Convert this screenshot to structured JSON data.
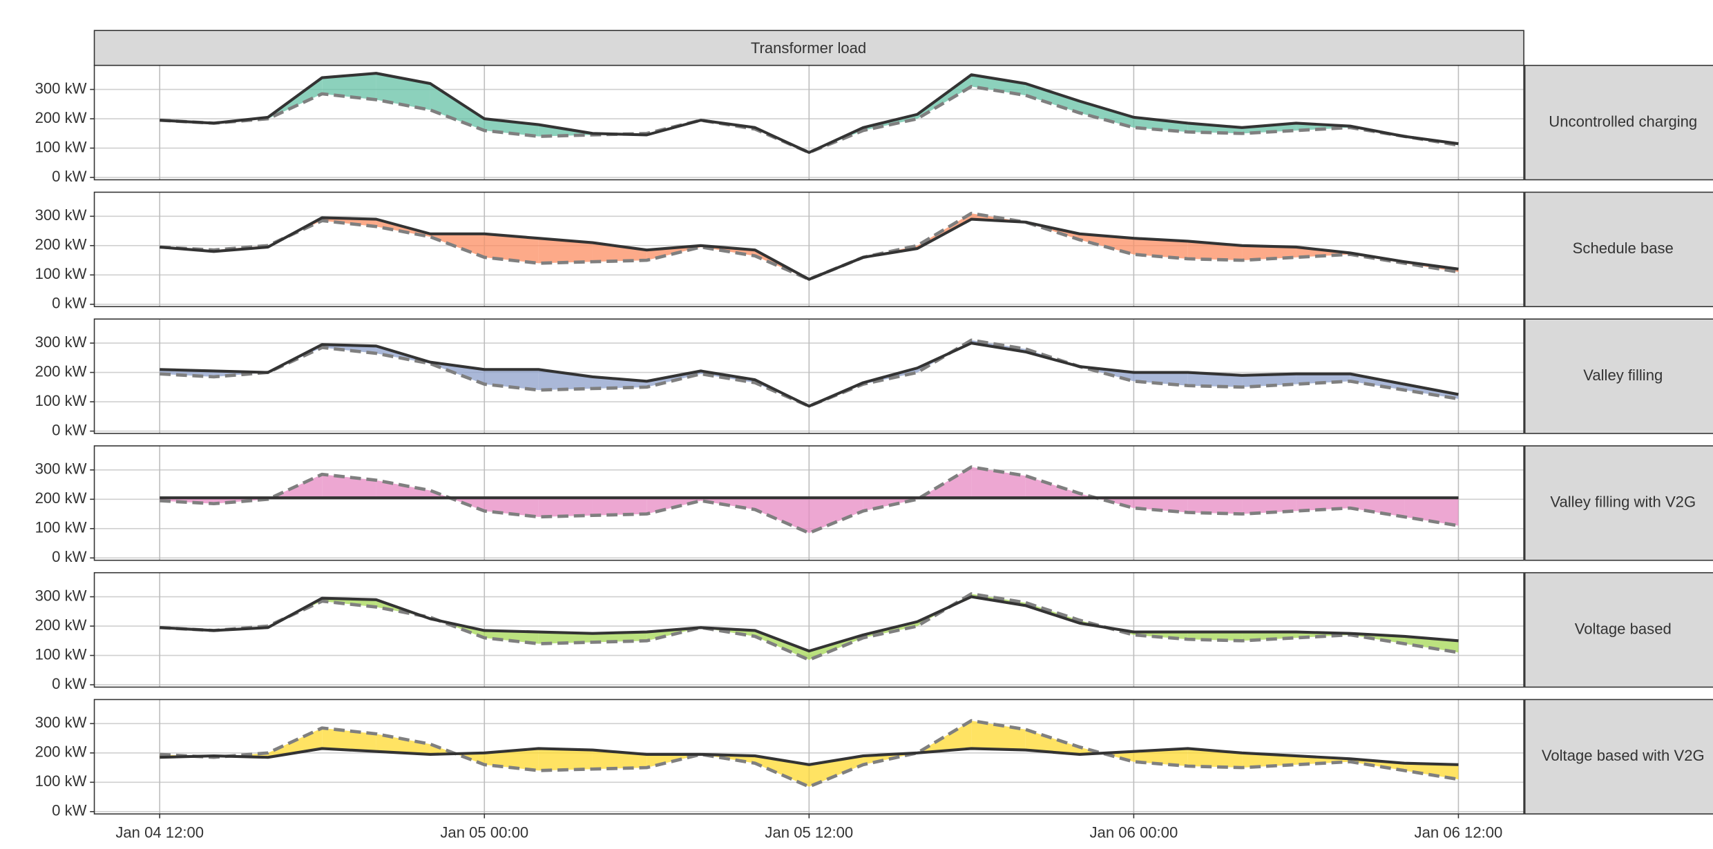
{
  "header": {
    "title": "Transformer load"
  },
  "chart_data": [
    {
      "type": "line",
      "label": "Uncontrolled charging",
      "fill": "#66c2a5",
      "x": [
        "Jan 04 12:00",
        "Jan 04 14:00",
        "Jan 04 16:00",
        "Jan 04 18:00",
        "Jan 04 20:00",
        "Jan 04 22:00",
        "Jan 05 00:00",
        "Jan 05 02:00",
        "Jan 05 04:00",
        "Jan 05 06:00",
        "Jan 05 08:00",
        "Jan 05 10:00",
        "Jan 05 12:00",
        "Jan 05 14:00",
        "Jan 05 16:00",
        "Jan 05 18:00",
        "Jan 05 20:00",
        "Jan 05 22:00",
        "Jan 06 00:00",
        "Jan 06 02:00",
        "Jan 06 04:00",
        "Jan 06 06:00",
        "Jan 06 08:00",
        "Jan 06 10:00",
        "Jan 06 12:00"
      ],
      "xlim": [
        "Jan 04 09:35",
        "Jan 06 14:25"
      ],
      "xticks": [
        "Jan 04 12:00",
        "Jan 05 00:00",
        "Jan 05 12:00",
        "Jan 06 00:00",
        "Jan 06 12:00"
      ],
      "ylim": [
        -8,
        382
      ],
      "yticks": [
        {
          "value": 0,
          "label": "0 kW"
        },
        {
          "value": 100,
          "label": "100 kW"
        },
        {
          "value": 200,
          "label": "200 kW"
        },
        {
          "value": 300,
          "label": "300 kW"
        }
      ],
      "series": [
        {
          "color": "#7f7f7f",
          "linestyle": "dashed",
          "values": [
            195,
            185,
            200,
            285,
            265,
            230,
            160,
            140,
            145,
            150,
            195,
            165,
            85,
            160,
            200,
            310,
            280,
            220,
            170,
            155,
            150,
            160,
            170,
            140,
            110
          ]
        },
        {
          "color": "#333333",
          "linestyle": "solid",
          "values": [
            195,
            185,
            205,
            340,
            355,
            320,
            200,
            180,
            150,
            145,
            195,
            170,
            85,
            170,
            215,
            350,
            320,
            260,
            205,
            185,
            170,
            185,
            175,
            140,
            115
          ]
        }
      ]
    },
    {
      "type": "line",
      "label": "Schedule base",
      "fill": "#fc8d62",
      "x": [
        "Jan 04 12:00",
        "Jan 04 14:00",
        "Jan 04 16:00",
        "Jan 04 18:00",
        "Jan 04 20:00",
        "Jan 04 22:00",
        "Jan 05 00:00",
        "Jan 05 02:00",
        "Jan 05 04:00",
        "Jan 05 06:00",
        "Jan 05 08:00",
        "Jan 05 10:00",
        "Jan 05 12:00",
        "Jan 05 14:00",
        "Jan 05 16:00",
        "Jan 05 18:00",
        "Jan 05 20:00",
        "Jan 05 22:00",
        "Jan 06 00:00",
        "Jan 06 02:00",
        "Jan 06 04:00",
        "Jan 06 06:00",
        "Jan 06 08:00",
        "Jan 06 10:00",
        "Jan 06 12:00"
      ],
      "xlim": [
        "Jan 04 09:35",
        "Jan 06 14:25"
      ],
      "xticks": [
        "Jan 04 12:00",
        "Jan 05 00:00",
        "Jan 05 12:00",
        "Jan 06 00:00",
        "Jan 06 12:00"
      ],
      "ylim": [
        -8,
        382
      ],
      "yticks": [
        {
          "value": 0,
          "label": "0 kW"
        },
        {
          "value": 100,
          "label": "100 kW"
        },
        {
          "value": 200,
          "label": "200 kW"
        },
        {
          "value": 300,
          "label": "300 kW"
        }
      ],
      "series": [
        {
          "color": "#7f7f7f",
          "linestyle": "dashed",
          "values": [
            195,
            185,
            200,
            285,
            265,
            230,
            160,
            140,
            145,
            150,
            195,
            165,
            85,
            160,
            200,
            310,
            280,
            220,
            170,
            155,
            150,
            160,
            170,
            140,
            110
          ]
        },
        {
          "color": "#333333",
          "linestyle": "solid",
          "values": [
            195,
            180,
            195,
            295,
            290,
            240,
            240,
            225,
            210,
            185,
            200,
            185,
            85,
            160,
            190,
            290,
            280,
            240,
            225,
            215,
            200,
            195,
            175,
            145,
            120
          ]
        }
      ]
    },
    {
      "type": "line",
      "label": "Valley filling",
      "fill": "#8da0cb",
      "x": [
        "Jan 04 12:00",
        "Jan 04 14:00",
        "Jan 04 16:00",
        "Jan 04 18:00",
        "Jan 04 20:00",
        "Jan 04 22:00",
        "Jan 05 00:00",
        "Jan 05 02:00",
        "Jan 05 04:00",
        "Jan 05 06:00",
        "Jan 05 08:00",
        "Jan 05 10:00",
        "Jan 05 12:00",
        "Jan 05 14:00",
        "Jan 05 16:00",
        "Jan 05 18:00",
        "Jan 05 20:00",
        "Jan 05 22:00",
        "Jan 06 00:00",
        "Jan 06 02:00",
        "Jan 06 04:00",
        "Jan 06 06:00",
        "Jan 06 08:00",
        "Jan 06 10:00",
        "Jan 06 12:00"
      ],
      "xlim": [
        "Jan 04 09:35",
        "Jan 06 14:25"
      ],
      "xticks": [
        "Jan 04 12:00",
        "Jan 05 00:00",
        "Jan 05 12:00",
        "Jan 06 00:00",
        "Jan 06 12:00"
      ],
      "ylim": [
        -8,
        382
      ],
      "yticks": [
        {
          "value": 0,
          "label": "0 kW"
        },
        {
          "value": 100,
          "label": "100 kW"
        },
        {
          "value": 200,
          "label": "200 kW"
        },
        {
          "value": 300,
          "label": "300 kW"
        }
      ],
      "series": [
        {
          "color": "#7f7f7f",
          "linestyle": "dashed",
          "values": [
            195,
            185,
            200,
            285,
            265,
            230,
            160,
            140,
            145,
            150,
            195,
            165,
            85,
            160,
            200,
            310,
            280,
            220,
            170,
            155,
            150,
            160,
            170,
            140,
            110
          ]
        },
        {
          "color": "#333333",
          "linestyle": "solid",
          "values": [
            210,
            205,
            200,
            295,
            290,
            235,
            210,
            210,
            185,
            170,
            205,
            175,
            85,
            165,
            215,
            300,
            270,
            220,
            200,
            200,
            190,
            195,
            195,
            160,
            125
          ]
        }
      ]
    },
    {
      "type": "line",
      "label": "Valley filling with V2G",
      "fill": "#e78ac3",
      "x": [
        "Jan 04 12:00",
        "Jan 04 14:00",
        "Jan 04 16:00",
        "Jan 04 18:00",
        "Jan 04 20:00",
        "Jan 04 22:00",
        "Jan 05 00:00",
        "Jan 05 02:00",
        "Jan 05 04:00",
        "Jan 05 06:00",
        "Jan 05 08:00",
        "Jan 05 10:00",
        "Jan 05 12:00",
        "Jan 05 14:00",
        "Jan 05 16:00",
        "Jan 05 18:00",
        "Jan 05 20:00",
        "Jan 05 22:00",
        "Jan 06 00:00",
        "Jan 06 02:00",
        "Jan 06 04:00",
        "Jan 06 06:00",
        "Jan 06 08:00",
        "Jan 06 10:00",
        "Jan 06 12:00"
      ],
      "xlim": [
        "Jan 04 09:35",
        "Jan 06 14:25"
      ],
      "xticks": [
        "Jan 04 12:00",
        "Jan 05 00:00",
        "Jan 05 12:00",
        "Jan 06 00:00",
        "Jan 06 12:00"
      ],
      "ylim": [
        -8,
        382
      ],
      "yticks": [
        {
          "value": 0,
          "label": "0 kW"
        },
        {
          "value": 100,
          "label": "100 kW"
        },
        {
          "value": 200,
          "label": "200 kW"
        },
        {
          "value": 300,
          "label": "300 kW"
        }
      ],
      "series": [
        {
          "color": "#7f7f7f",
          "linestyle": "dashed",
          "values": [
            195,
            185,
            200,
            285,
            265,
            230,
            160,
            140,
            145,
            150,
            195,
            165,
            85,
            160,
            200,
            310,
            280,
            220,
            170,
            155,
            150,
            160,
            170,
            140,
            110
          ]
        },
        {
          "color": "#333333",
          "linestyle": "solid",
          "values": [
            205,
            205,
            205,
            205,
            205,
            205,
            205,
            205,
            205,
            205,
            205,
            205,
            205,
            205,
            205,
            205,
            205,
            205,
            205,
            205,
            205,
            205,
            205,
            205,
            205
          ]
        }
      ]
    },
    {
      "type": "line",
      "label": "Voltage based",
      "fill": "#a6d854",
      "x": [
        "Jan 04 12:00",
        "Jan 04 14:00",
        "Jan 04 16:00",
        "Jan 04 18:00",
        "Jan 04 20:00",
        "Jan 04 22:00",
        "Jan 05 00:00",
        "Jan 05 02:00",
        "Jan 05 04:00",
        "Jan 05 06:00",
        "Jan 05 08:00",
        "Jan 05 10:00",
        "Jan 05 12:00",
        "Jan 05 14:00",
        "Jan 05 16:00",
        "Jan 05 18:00",
        "Jan 05 20:00",
        "Jan 05 22:00",
        "Jan 06 00:00",
        "Jan 06 02:00",
        "Jan 06 04:00",
        "Jan 06 06:00",
        "Jan 06 08:00",
        "Jan 06 10:00",
        "Jan 06 12:00"
      ],
      "xlim": [
        "Jan 04 09:35",
        "Jan 06 14:25"
      ],
      "xticks": [
        "Jan 04 12:00",
        "Jan 05 00:00",
        "Jan 05 12:00",
        "Jan 06 00:00",
        "Jan 06 12:00"
      ],
      "ylim": [
        -8,
        382
      ],
      "yticks": [
        {
          "value": 0,
          "label": "0 kW"
        },
        {
          "value": 100,
          "label": "100 kW"
        },
        {
          "value": 200,
          "label": "200 kW"
        },
        {
          "value": 300,
          "label": "300 kW"
        }
      ],
      "series": [
        {
          "color": "#7f7f7f",
          "linestyle": "dashed",
          "values": [
            195,
            185,
            200,
            285,
            265,
            230,
            160,
            140,
            145,
            150,
            195,
            165,
            85,
            160,
            200,
            310,
            280,
            220,
            170,
            155,
            150,
            160,
            170,
            140,
            110
          ]
        },
        {
          "color": "#333333",
          "linestyle": "solid",
          "values": [
            195,
            185,
            195,
            295,
            290,
            225,
            185,
            180,
            175,
            180,
            195,
            185,
            115,
            170,
            215,
            300,
            270,
            210,
            180,
            180,
            180,
            180,
            175,
            165,
            150
          ]
        }
      ]
    },
    {
      "type": "line",
      "label": "Voltage based with V2G",
      "fill": "#ffd92f",
      "x": [
        "Jan 04 12:00",
        "Jan 04 14:00",
        "Jan 04 16:00",
        "Jan 04 18:00",
        "Jan 04 20:00",
        "Jan 04 22:00",
        "Jan 05 00:00",
        "Jan 05 02:00",
        "Jan 05 04:00",
        "Jan 05 06:00",
        "Jan 05 08:00",
        "Jan 05 10:00",
        "Jan 05 12:00",
        "Jan 05 14:00",
        "Jan 05 16:00",
        "Jan 05 18:00",
        "Jan 05 20:00",
        "Jan 05 22:00",
        "Jan 06 00:00",
        "Jan 06 02:00",
        "Jan 06 04:00",
        "Jan 06 06:00",
        "Jan 06 08:00",
        "Jan 06 10:00",
        "Jan 06 12:00"
      ],
      "xlim": [
        "Jan 04 09:35",
        "Jan 06 14:25"
      ],
      "xticks": [
        "Jan 04 12:00",
        "Jan 05 00:00",
        "Jan 05 12:00",
        "Jan 06 00:00",
        "Jan 06 12:00"
      ],
      "ylim": [
        -8,
        382
      ],
      "yticks": [
        {
          "value": 0,
          "label": "0 kW"
        },
        {
          "value": 100,
          "label": "100 kW"
        },
        {
          "value": 200,
          "label": "200 kW"
        },
        {
          "value": 300,
          "label": "300 kW"
        }
      ],
      "series": [
        {
          "color": "#7f7f7f",
          "linestyle": "dashed",
          "values": [
            195,
            185,
            200,
            285,
            265,
            230,
            160,
            140,
            145,
            150,
            195,
            165,
            85,
            160,
            200,
            310,
            280,
            220,
            170,
            155,
            150,
            160,
            170,
            140,
            110
          ]
        },
        {
          "color": "#333333",
          "linestyle": "solid",
          "values": [
            185,
            190,
            185,
            215,
            205,
            195,
            200,
            215,
            210,
            195,
            195,
            190,
            160,
            190,
            200,
            215,
            210,
            195,
            205,
            215,
            200,
            190,
            180,
            165,
            160
          ]
        }
      ]
    }
  ]
}
